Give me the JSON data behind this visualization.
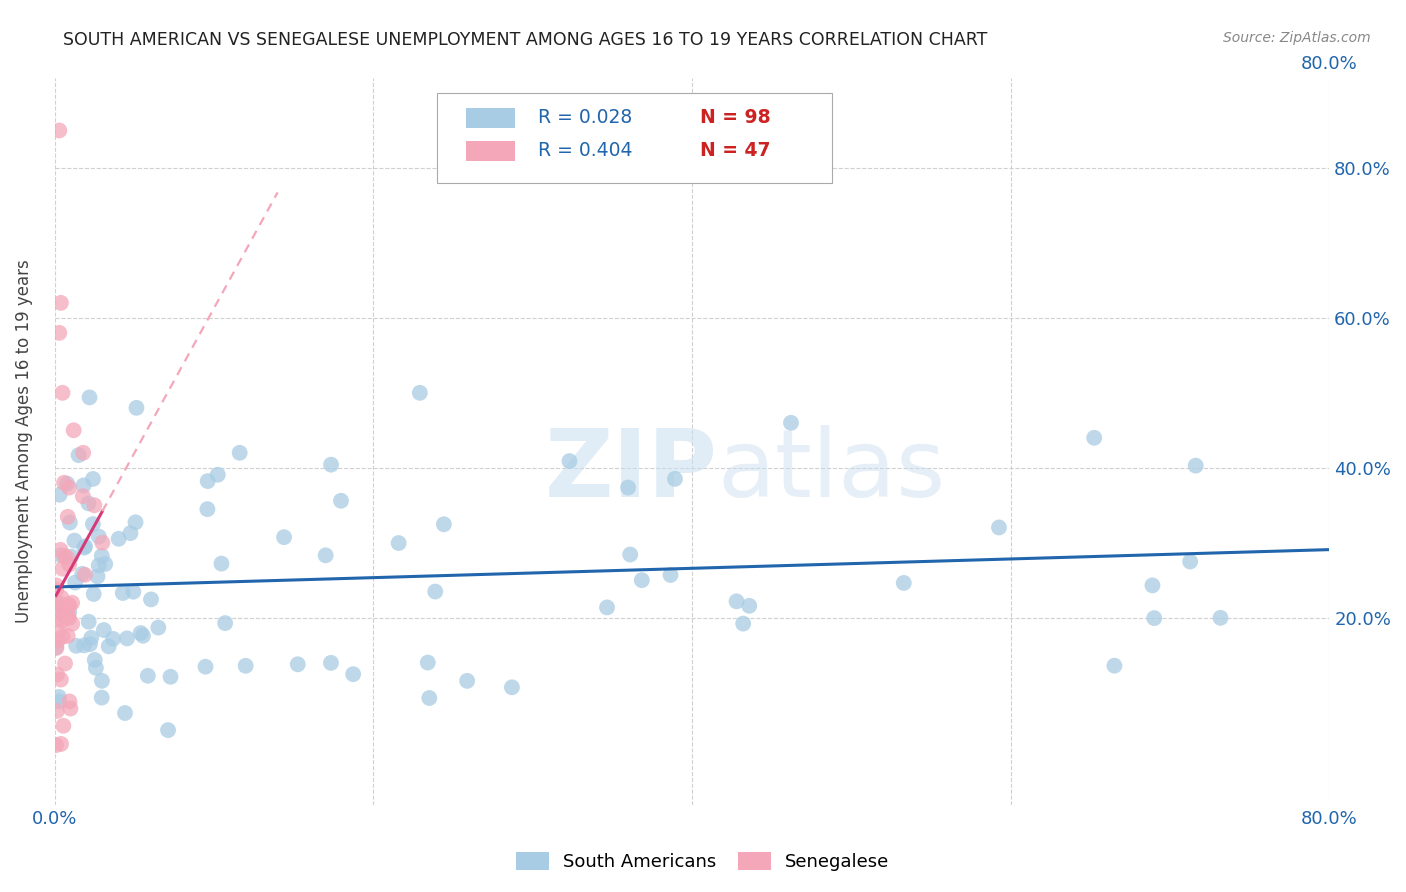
{
  "title": "SOUTH AMERICAN VS SENEGALESE UNEMPLOYMENT AMONG AGES 16 TO 19 YEARS CORRELATION CHART",
  "source": "Source: ZipAtlas.com",
  "ylabel": "Unemployment Among Ages 16 to 19 years",
  "xlim": [
    0.0,
    0.8
  ],
  "ylim": [
    -0.05,
    0.92
  ],
  "xticks": [
    0.0,
    0.2,
    0.4,
    0.6,
    0.8
  ],
  "yticks": [
    0.2,
    0.4,
    0.6,
    0.8
  ],
  "xticklabels_bottom": [
    "0.0%",
    "",
    "",
    "",
    "80.0%"
  ],
  "yticklabels_right": [
    "20.0%",
    "40.0%",
    "60.0%",
    "80.0%"
  ],
  "blue_color": "#a8cce4",
  "pink_color": "#f4a7b9",
  "blue_line_color": "#2166ac",
  "pink_solid_color": "#d63a7a",
  "pink_dash_color": "#f4a7b9",
  "grid_color": "#d0d0d0",
  "title_color": "#222222",
  "source_color": "#888888",
  "axis_label_color": "#444444",
  "tick_color_blue": "#2166ac",
  "legend_R_blue": "0.028",
  "legend_N_blue": "98",
  "legend_R_pink": "0.404",
  "legend_N_pink": "47",
  "watermark_zip": "ZIP",
  "watermark_atlas": "atlas"
}
